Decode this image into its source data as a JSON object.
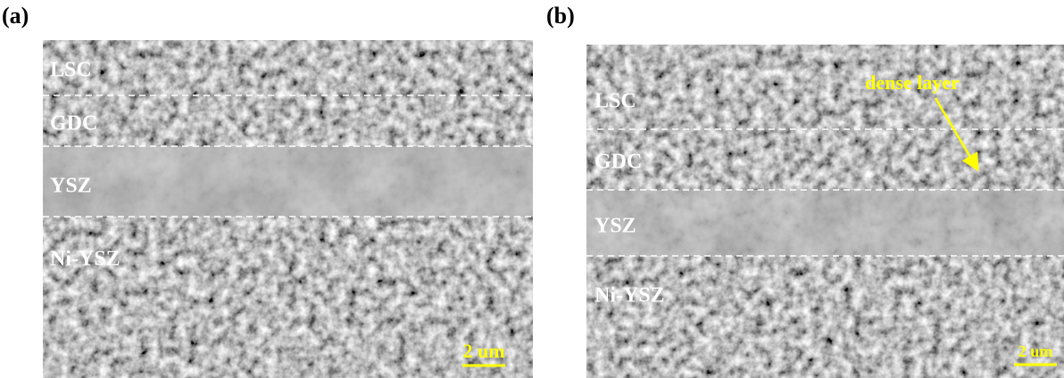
{
  "panels": [
    {
      "label": "(a)",
      "layers": [
        "LSC",
        "GDC",
        "YSZ",
        "Ni-YSZ"
      ],
      "scale_bar": "2 um"
    },
    {
      "label": "(b)",
      "layers": [
        "LSC",
        "GDC",
        "YSZ",
        "Ni-YSZ"
      ],
      "annotation": "dense layer",
      "scale_bar": "2 um"
    }
  ]
}
